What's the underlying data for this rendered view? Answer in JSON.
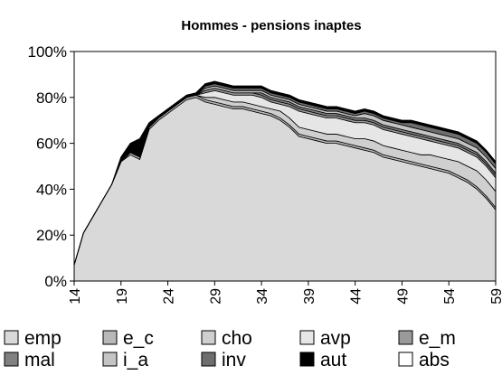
{
  "chart_data": {
    "type": "stacked-area",
    "title": "Hommes - pensions inaptes",
    "x": [
      14,
      15,
      16,
      17,
      18,
      19,
      20,
      21,
      22,
      23,
      24,
      25,
      26,
      27,
      28,
      29,
      30,
      31,
      32,
      33,
      34,
      35,
      36,
      37,
      38,
      39,
      40,
      41,
      42,
      43,
      44,
      45,
      46,
      47,
      48,
      49,
      50,
      51,
      52,
      53,
      54,
      55,
      56,
      57,
      58,
      59
    ],
    "xlim": [
      14,
      59
    ],
    "xticks": [
      14,
      19,
      24,
      29,
      34,
      39,
      44,
      49,
      54,
      59
    ],
    "ylim": [
      0,
      100
    ],
    "yticks": [
      {
        "value": 0,
        "label": "0%"
      },
      {
        "value": 20,
        "label": "20%"
      },
      {
        "value": 40,
        "label": "40%"
      },
      {
        "value": 60,
        "label": "60%"
      },
      {
        "value": 80,
        "label": "80%"
      },
      {
        "value": 100,
        "label": "100%"
      }
    ],
    "series": [
      {
        "name": "emp",
        "color": "#d9d9d9",
        "values": [
          7,
          21,
          28,
          35,
          42,
          52,
          55,
          53,
          66,
          70,
          73,
          76,
          79,
          80,
          78,
          77,
          76,
          75,
          75,
          74,
          73,
          72,
          70,
          67,
          63,
          62,
          61,
          60,
          60,
          59,
          58,
          57,
          56,
          54,
          53,
          52,
          51,
          50,
          49,
          48,
          47,
          45,
          43,
          40,
          36,
          31
        ]
      },
      {
        "name": "e_c",
        "color": "#b8b8b8",
        "values": [
          0,
          0,
          0,
          0,
          0,
          0,
          1,
          1,
          1,
          1,
          1,
          1,
          1,
          1,
          1,
          1,
          1,
          1,
          1,
          1,
          1,
          1,
          1,
          1,
          1,
          1,
          1,
          1,
          1,
          1,
          1,
          1,
          1,
          1,
          1,
          1,
          1,
          1,
          1,
          1,
          1,
          1,
          1,
          1,
          1,
          1
        ]
      },
      {
        "name": "cho",
        "color": "#cfcfcf",
        "values": [
          0,
          0,
          0,
          0,
          0,
          0,
          0,
          0,
          0,
          0,
          0,
          0,
          0,
          0,
          1,
          2,
          2,
          2,
          2,
          2,
          2,
          2,
          3,
          3,
          3,
          3,
          3,
          3,
          3,
          3,
          3,
          4,
          4,
          4,
          4,
          4,
          4,
          4,
          5,
          5,
          5,
          6,
          6,
          7,
          7,
          7
        ]
      },
      {
        "name": "avp",
        "color": "#e6e6e6",
        "values": [
          0,
          0,
          0,
          0,
          0,
          0,
          0,
          0,
          0,
          0,
          0,
          0,
          0,
          0,
          2,
          3,
          3,
          3,
          3,
          4,
          4,
          3,
          3,
          5,
          7,
          7,
          7,
          7,
          7,
          7,
          7,
          7,
          7,
          7,
          7,
          7,
          7,
          7,
          6,
          6,
          6,
          6,
          6,
          6,
          6,
          6
        ]
      },
      {
        "name": "e_m",
        "color": "#9a9a9a",
        "values": [
          0,
          0,
          0,
          0,
          0,
          0,
          0,
          0,
          0,
          0,
          0,
          0,
          0,
          0,
          1,
          1,
          1,
          1,
          1,
          1,
          1,
          1,
          1,
          1,
          1,
          1,
          1,
          1,
          1,
          1,
          1,
          1,
          1,
          1,
          1,
          1,
          1,
          1,
          1,
          1,
          1,
          1,
          1,
          1,
          1,
          1
        ]
      },
      {
        "name": "mal",
        "color": "#808080",
        "values": [
          0,
          0,
          0,
          0,
          0,
          0,
          0,
          0,
          0,
          0,
          0,
          0,
          0,
          0,
          0,
          0,
          0,
          0,
          0,
          0,
          1,
          1,
          1,
          1,
          1,
          1,
          1,
          1,
          1,
          1,
          1,
          1,
          1,
          1,
          1,
          1,
          1,
          1,
          1,
          1,
          1,
          1,
          1,
          1,
          1,
          1
        ]
      },
      {
        "name": "i_a",
        "color": "#c4c4c4",
        "values": [
          0,
          0,
          0,
          0,
          0,
          0,
          0,
          0,
          0,
          0,
          0,
          0,
          0,
          0,
          1,
          1,
          1,
          1,
          1,
          1,
          1,
          1,
          1,
          1,
          1,
          1,
          1,
          1,
          1,
          1,
          1,
          2,
          2,
          2,
          2,
          2,
          2,
          2,
          2,
          2,
          2,
          2,
          2,
          2,
          2,
          2
        ]
      },
      {
        "name": "inv",
        "color": "#6e6e6e",
        "values": [
          0,
          0,
          0,
          0,
          0,
          0,
          0,
          0,
          0,
          0,
          0,
          0,
          0,
          0,
          1,
          1,
          1,
          1,
          1,
          1,
          1,
          1,
          1,
          1,
          1,
          1,
          1,
          1,
          1,
          1,
          1,
          1,
          1,
          1,
          1,
          1,
          2,
          2,
          2,
          2,
          2,
          2,
          2,
          2,
          2,
          2
        ]
      },
      {
        "name": "aut",
        "color": "#000000",
        "values": [
          0,
          0,
          0,
          0,
          0,
          2,
          4,
          8,
          2,
          1,
          1,
          1,
          1,
          1,
          1,
          1,
          1,
          1,
          1,
          1,
          1,
          1,
          1,
          1,
          1,
          1,
          1,
          1,
          1,
          1,
          1,
          1,
          1,
          1,
          1,
          1,
          1,
          1,
          1,
          1,
          1,
          1,
          1,
          1,
          1,
          1
        ]
      },
      {
        "name": "abs",
        "color": "#ffffff",
        "values": [
          0,
          0,
          0,
          0,
          0,
          0,
          0,
          0,
          0,
          0,
          0,
          0,
          0,
          0,
          0,
          0,
          0,
          0,
          0,
          0,
          0,
          0,
          0,
          0,
          0,
          0,
          0,
          0,
          0,
          0,
          0,
          0,
          0,
          0,
          0,
          0,
          0,
          0,
          0,
          0,
          0,
          0,
          0,
          0,
          0,
          0
        ]
      }
    ]
  }
}
